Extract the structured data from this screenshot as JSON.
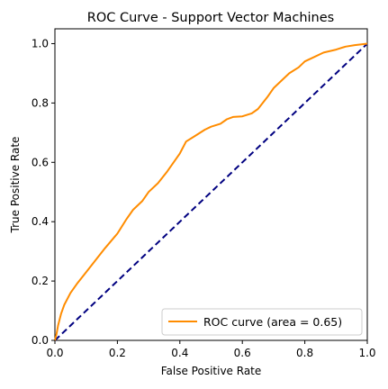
{
  "chart_data": {
    "type": "line",
    "title": "ROC Curve - Support Vector Machines",
    "xlabel": "False Positive Rate",
    "ylabel": "True Positive Rate",
    "xlim": [
      0.0,
      1.0
    ],
    "ylim": [
      0.0,
      1.05
    ],
    "x_ticks": [
      "0.0",
      "0.2",
      "0.4",
      "0.6",
      "0.8",
      "1.0"
    ],
    "y_ticks": [
      "0.0",
      "0.2",
      "0.4",
      "0.6",
      "0.8",
      "1.0"
    ],
    "grid": false,
    "legend_position": "lower right",
    "series": [
      {
        "name": "ROC curve (area = 0.65)",
        "color": "#ff8c00",
        "style": "solid",
        "x": [
          0.0,
          0.005,
          0.01,
          0.02,
          0.03,
          0.05,
          0.07,
          0.1,
          0.13,
          0.16,
          0.2,
          0.23,
          0.25,
          0.28,
          0.3,
          0.33,
          0.36,
          0.4,
          0.42,
          0.45,
          0.48,
          0.5,
          0.53,
          0.55,
          0.57,
          0.6,
          0.63,
          0.65,
          0.68,
          0.7,
          0.73,
          0.75,
          0.78,
          0.8,
          0.83,
          0.86,
          0.9,
          0.93,
          0.96,
          1.0
        ],
        "y": [
          0.0,
          0.02,
          0.05,
          0.09,
          0.12,
          0.16,
          0.19,
          0.23,
          0.27,
          0.31,
          0.36,
          0.41,
          0.44,
          0.47,
          0.5,
          0.53,
          0.57,
          0.63,
          0.67,
          0.69,
          0.71,
          0.72,
          0.73,
          0.745,
          0.753,
          0.755,
          0.765,
          0.78,
          0.82,
          0.85,
          0.88,
          0.9,
          0.92,
          0.94,
          0.955,
          0.97,
          0.98,
          0.99,
          0.995,
          1.0
        ]
      },
      {
        "name": "",
        "color": "#000080",
        "style": "dashed",
        "x": [
          0.0,
          1.0
        ],
        "y": [
          0.0,
          1.0
        ]
      }
    ]
  }
}
